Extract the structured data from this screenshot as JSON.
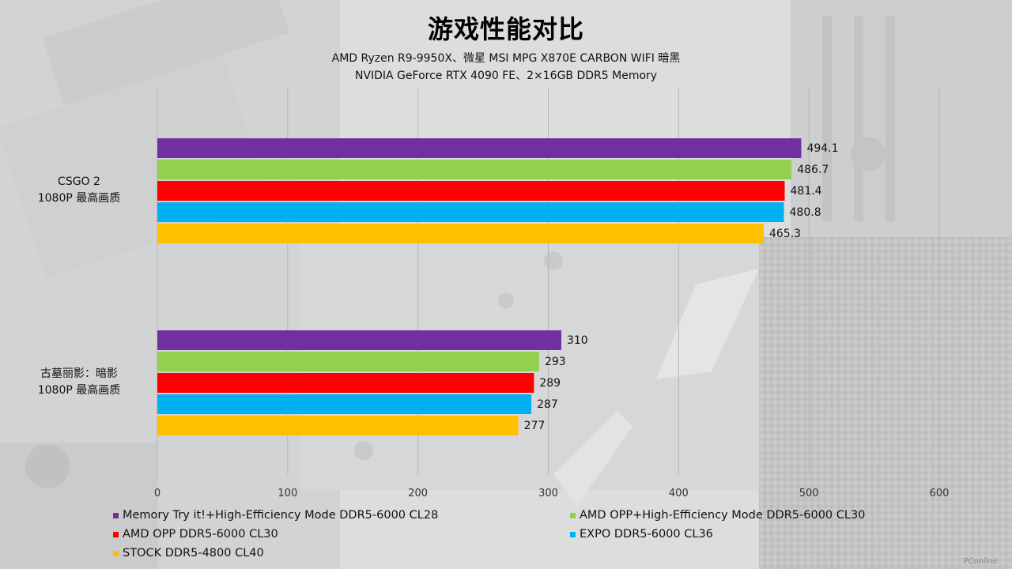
{
  "chart_data": {
    "type": "bar",
    "orientation": "horizontal",
    "title": "游戏性能对比",
    "subtitle_lines": [
      "AMD Ryzen R9-9950X、微星 MSI MPG X870E CARBON WIFI 暗黑",
      "NVIDIA GeForce RTX 4090 FE、2×16GB DDR5  Memory"
    ],
    "categories": [
      {
        "line1": "CSGO 2",
        "line2": "1080P 最高画质"
      },
      {
        "line1": "古墓丽影：暗影",
        "line2": "1080P 最高画质"
      }
    ],
    "series": [
      {
        "name": "Memory Try it!+High-Efficiency Mode DDR5-6000 CL28",
        "color": "#7030a0",
        "values": [
          494.1,
          310
        ],
        "labels": [
          "494.1",
          "310"
        ]
      },
      {
        "name": "AMD OPP+High-Efficiency Mode DDR5-6000 CL30",
        "color": "#92d050",
        "values": [
          486.7,
          293
        ],
        "labels": [
          "486.7",
          "293"
        ]
      },
      {
        "name": "AMD OPP DDR5-6000 CL30",
        "color": "#ff0000",
        "values": [
          481.4,
          289
        ],
        "labels": [
          "481.4",
          "289"
        ]
      },
      {
        "name": "EXPO DDR5-6000 CL36",
        "color": "#00b0f0",
        "values": [
          480.8,
          287
        ],
        "labels": [
          "480.8",
          "287"
        ]
      },
      {
        "name": "STOCK DDR5-4800 CL40",
        "color": "#ffc000",
        "values": [
          465.3,
          277
        ],
        "labels": [
          "465.3",
          "277"
        ]
      }
    ],
    "xlim": [
      0,
      600
    ],
    "xticks": [
      "0",
      "100",
      "200",
      "300",
      "400",
      "500",
      "600"
    ],
    "grid": true,
    "legend_position": "bottom"
  },
  "watermark": "PConline"
}
